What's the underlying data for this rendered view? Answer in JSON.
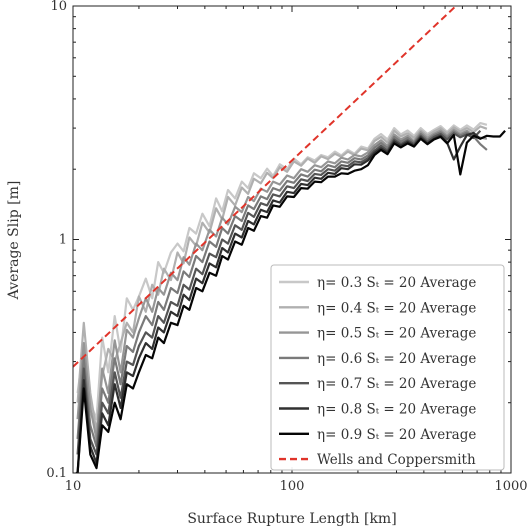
{
  "chart_data": {
    "type": "line",
    "title": "",
    "xlabel": "Surface Rupture Length [km]",
    "ylabel": "Average Slip [m]",
    "xscale": "log",
    "yscale": "log",
    "xlim": [
      10,
      1000
    ],
    "ylim": [
      0.1,
      10
    ],
    "xticks": [
      {
        "value": 10,
        "label": "10"
      },
      {
        "value": 100,
        "label": "100"
      },
      {
        "value": 1000,
        "label": "1000"
      }
    ],
    "yticks": [
      {
        "value": 0.1,
        "label": "0.1"
      },
      {
        "value": 1,
        "label": "1"
      },
      {
        "value": 10,
        "label": "10"
      }
    ],
    "grid": false,
    "legend_position": "bottom-right",
    "series": [
      {
        "name": "η= 0.3 Sₜ = 20 Average",
        "color": "#c8c8c8",
        "style": "solid",
        "x": [
          10.5,
          11.2,
          12,
          12.8,
          13.6,
          14.5,
          15.5,
          16.5,
          17.6,
          18.8,
          20,
          21.5,
          23,
          24.5,
          26,
          28,
          30,
          32,
          34,
          36.5,
          39,
          42,
          45,
          48,
          51,
          55,
          59,
          63,
          67,
          72,
          77,
          82,
          88,
          95,
          102,
          110,
          118,
          127,
          136,
          146,
          157,
          168,
          180,
          193,
          207,
          222,
          238,
          255,
          273,
          293,
          314,
          337,
          361,
          387,
          415,
          445,
          477,
          511,
          548,
          587,
          629,
          675,
          724,
          776
        ],
        "y": [
          0.22,
          0.35,
          0.2,
          0.17,
          0.38,
          0.27,
          0.47,
          0.33,
          0.56,
          0.5,
          0.57,
          0.68,
          0.56,
          0.8,
          0.72,
          0.88,
          0.96,
          0.89,
          1.12,
          1.06,
          1.29,
          1.14,
          1.5,
          1.32,
          1.63,
          1.5,
          1.77,
          1.66,
          1.92,
          1.83,
          2.01,
          1.87,
          2.1,
          2.0,
          2.22,
          2.1,
          2.25,
          2.18,
          2.3,
          2.25,
          2.38,
          2.29,
          2.42,
          2.33,
          2.5,
          2.45,
          2.7,
          2.83,
          2.68,
          3.0,
          2.82,
          2.93,
          2.78,
          3.0,
          2.83,
          2.95,
          3.06,
          2.89,
          3.08,
          2.95,
          3.08,
          2.96,
          3.15,
          3.1
        ]
      },
      {
        "name": "η= 0.4 Sₜ = 20 Average",
        "color": "#b0b0b0",
        "style": "solid",
        "x": [
          10.5,
          11.2,
          12,
          12.8,
          13.6,
          14.5,
          15.5,
          16.5,
          17.6,
          18.8,
          20,
          21.5,
          23,
          24.5,
          26,
          28,
          30,
          32,
          34,
          36.5,
          39,
          42,
          45,
          48,
          51,
          55,
          59,
          63,
          67,
          72,
          77,
          82,
          88,
          95,
          102,
          110,
          118,
          127,
          136,
          146,
          157,
          168,
          180,
          193,
          207,
          222,
          238,
          255,
          273,
          293,
          314,
          337,
          361,
          387,
          415,
          445,
          477,
          511,
          548,
          587,
          629,
          675,
          724,
          776
        ],
        "y": [
          0.2,
          0.44,
          0.22,
          0.15,
          0.26,
          0.34,
          0.3,
          0.36,
          0.44,
          0.4,
          0.57,
          0.49,
          0.64,
          0.58,
          0.75,
          0.67,
          0.88,
          0.79,
          1.02,
          0.94,
          1.18,
          1.07,
          1.36,
          1.22,
          1.52,
          1.4,
          1.67,
          1.57,
          1.82,
          1.74,
          1.93,
          1.83,
          2.04,
          1.95,
          2.16,
          2.07,
          2.22,
          2.13,
          2.27,
          2.21,
          2.33,
          2.26,
          2.38,
          2.3,
          2.45,
          2.41,
          2.64,
          2.75,
          2.6,
          2.92,
          2.76,
          2.85,
          2.72,
          2.93,
          2.78,
          2.9,
          3.0,
          2.85,
          3.02,
          2.9,
          3.0,
          2.88,
          3.05,
          2.98
        ]
      },
      {
        "name": "η= 0.5 Sₜ = 20 Average",
        "color": "#969696",
        "style": "solid",
        "x": [
          10.5,
          11.2,
          12,
          12.8,
          13.6,
          14.5,
          15.5,
          16.5,
          17.6,
          18.8,
          20,
          21.5,
          23,
          24.5,
          26,
          28,
          30,
          32,
          34,
          36.5,
          39,
          42,
          45,
          48,
          51,
          55,
          59,
          63,
          67,
          72,
          77,
          82,
          88,
          95,
          102,
          110,
          118,
          127,
          136,
          146,
          157,
          168,
          180,
          193,
          207,
          222,
          238,
          255,
          273,
          293,
          314,
          337,
          361,
          387,
          415,
          445,
          477,
          511,
          548,
          587,
          629,
          675,
          724,
          776
        ],
        "y": [
          0.17,
          0.36,
          0.19,
          0.14,
          0.28,
          0.22,
          0.37,
          0.27,
          0.41,
          0.38,
          0.46,
          0.56,
          0.49,
          0.62,
          0.58,
          0.72,
          0.67,
          0.84,
          0.78,
          0.96,
          0.9,
          1.1,
          1.03,
          1.24,
          1.16,
          1.38,
          1.31,
          1.52,
          1.46,
          1.65,
          1.6,
          1.77,
          1.72,
          1.88,
          1.83,
          2.0,
          1.95,
          2.08,
          2.04,
          2.16,
          2.12,
          2.24,
          2.2,
          2.3,
          2.27,
          2.36,
          2.54,
          2.66,
          2.52,
          2.82,
          2.68,
          2.78,
          2.64,
          2.88,
          2.72,
          2.84,
          2.93,
          2.78,
          2.95,
          2.83,
          2.92,
          2.79,
          2.73,
          2.7
        ]
      },
      {
        "name": "η= 0.6 Sₜ = 20 Average",
        "color": "#7a7a7a",
        "style": "solid",
        "x": [
          10.5,
          11.2,
          12,
          12.8,
          13.6,
          14.5,
          15.5,
          16.5,
          17.6,
          18.8,
          20,
          21.5,
          23,
          24.5,
          26,
          28,
          30,
          32,
          34,
          36.5,
          39,
          42,
          45,
          48,
          51,
          55,
          59,
          63,
          67,
          72,
          77,
          82,
          88,
          95,
          102,
          110,
          118,
          127,
          136,
          146,
          157,
          168,
          180,
          193,
          207,
          222,
          238,
          255,
          273,
          293,
          314,
          337,
          361,
          387,
          415,
          445,
          477,
          511,
          548,
          587,
          629,
          675,
          724,
          776
        ],
        "y": [
          0.14,
          0.31,
          0.16,
          0.13,
          0.23,
          0.2,
          0.31,
          0.24,
          0.35,
          0.33,
          0.4,
          0.47,
          0.43,
          0.54,
          0.5,
          0.62,
          0.59,
          0.73,
          0.69,
          0.85,
          0.8,
          0.98,
          0.93,
          1.12,
          1.06,
          1.26,
          1.2,
          1.4,
          1.35,
          1.53,
          1.49,
          1.66,
          1.62,
          1.78,
          1.75,
          1.9,
          1.86,
          1.99,
          1.96,
          2.08,
          2.04,
          2.16,
          2.13,
          2.23,
          2.2,
          2.29,
          2.47,
          2.59,
          2.46,
          2.75,
          2.62,
          2.72,
          2.6,
          2.83,
          2.67,
          2.8,
          2.88,
          2.74,
          2.9,
          2.79,
          2.87,
          2.76,
          2.56,
          2.42
        ]
      },
      {
        "name": "η= 0.7 Sₜ = 20 Average",
        "color": "#555555",
        "style": "solid",
        "x": [
          10.5,
          11.2,
          12,
          12.8,
          13.6,
          14.5,
          15.5,
          16.5,
          17.6,
          18.8,
          20,
          21.5,
          23,
          24.5,
          26,
          28,
          30,
          32,
          34,
          36.5,
          39,
          42,
          45,
          48,
          51,
          55,
          59,
          63,
          67,
          72,
          77,
          82,
          88,
          95,
          102,
          110,
          118,
          127,
          136,
          146,
          157,
          168,
          180,
          193,
          207,
          222,
          238,
          255,
          273,
          293,
          314,
          337,
          361,
          387,
          415,
          445,
          477,
          511,
          548,
          587,
          629,
          675,
          724
        ],
        "y": [
          0.12,
          0.28,
          0.14,
          0.12,
          0.2,
          0.18,
          0.27,
          0.21,
          0.3,
          0.29,
          0.35,
          0.4,
          0.38,
          0.47,
          0.44,
          0.54,
          0.52,
          0.64,
          0.61,
          0.75,
          0.71,
          0.87,
          0.84,
          1.0,
          0.96,
          1.15,
          1.1,
          1.3,
          1.25,
          1.43,
          1.4,
          1.56,
          1.53,
          1.69,
          1.66,
          1.81,
          1.78,
          1.91,
          1.89,
          2.0,
          1.97,
          2.08,
          2.06,
          2.16,
          2.14,
          2.23,
          2.4,
          2.52,
          2.4,
          2.68,
          2.56,
          2.66,
          2.56,
          2.78,
          2.62,
          2.75,
          2.83,
          2.68,
          2.85,
          2.74,
          2.82,
          2.72,
          2.92
        ]
      },
      {
        "name": "η= 0.8 Sₜ = 20 Average",
        "color": "#303030",
        "style": "solid",
        "x": [
          10.5,
          11.2,
          12,
          12.8,
          13.6,
          14.5,
          15.5,
          16.5,
          17.6,
          18.8,
          20,
          21.5,
          23,
          24.5,
          26,
          28,
          30,
          32,
          34,
          36.5,
          39,
          42,
          45,
          48,
          51,
          55,
          59,
          63,
          67,
          72,
          77,
          82,
          88,
          95,
          102,
          110,
          118,
          127,
          136,
          146,
          157,
          168,
          180,
          193,
          207,
          222,
          238,
          255,
          273,
          293,
          314,
          337,
          361,
          387,
          415,
          445,
          477,
          511,
          548,
          587,
          629,
          675,
          724
        ],
        "y": [
          0.1,
          0.25,
          0.13,
          0.11,
          0.18,
          0.16,
          0.24,
          0.19,
          0.27,
          0.26,
          0.31,
          0.36,
          0.34,
          0.42,
          0.4,
          0.49,
          0.47,
          0.58,
          0.55,
          0.68,
          0.65,
          0.79,
          0.76,
          0.92,
          0.88,
          1.06,
          1.02,
          1.2,
          1.16,
          1.34,
          1.31,
          1.47,
          1.44,
          1.6,
          1.58,
          1.73,
          1.71,
          1.84,
          1.82,
          1.93,
          1.91,
          2.02,
          2.0,
          2.1,
          2.09,
          2.18,
          2.35,
          2.46,
          2.36,
          2.63,
          2.52,
          2.62,
          2.52,
          2.74,
          2.58,
          2.7,
          2.78,
          2.6,
          2.2,
          2.5,
          2.8,
          2.86,
          2.7
        ]
      },
      {
        "name": "η= 0.9 Sₜ = 20 Average",
        "color": "#050505",
        "style": "solid",
        "x": [
          10.3,
          10.5,
          11.2,
          12,
          12.8,
          13.6,
          14.5,
          15.5,
          16.5,
          17.6,
          18.8,
          20,
          21.5,
          23,
          24.5,
          26,
          28,
          30,
          32,
          34,
          36.5,
          39,
          42,
          45,
          48,
          51,
          55,
          59,
          63,
          67,
          72,
          77,
          82,
          88,
          95,
          102,
          110,
          118,
          127,
          136,
          146,
          157,
          168,
          180,
          193,
          207,
          222,
          238,
          255,
          273,
          293,
          314,
          337,
          361,
          387,
          415,
          445,
          477,
          511,
          548,
          587,
          629,
          675,
          724,
          776,
          830,
          890,
          940
        ],
        "y": [
          0.1,
          0.1,
          0.23,
          0.12,
          0.105,
          0.16,
          0.15,
          0.2,
          0.17,
          0.24,
          0.23,
          0.27,
          0.32,
          0.31,
          0.38,
          0.36,
          0.44,
          0.43,
          0.52,
          0.5,
          0.62,
          0.6,
          0.72,
          0.7,
          0.85,
          0.82,
          0.98,
          0.95,
          1.12,
          1.09,
          1.26,
          1.24,
          1.4,
          1.38,
          1.53,
          1.52,
          1.66,
          1.65,
          1.77,
          1.76,
          1.86,
          1.86,
          1.92,
          1.91,
          1.97,
          2.0,
          2.08,
          2.3,
          2.42,
          2.32,
          2.58,
          2.48,
          2.58,
          2.5,
          2.7,
          2.56,
          2.68,
          2.75,
          2.58,
          2.8,
          1.9,
          2.6,
          2.78,
          2.7,
          2.78,
          2.76,
          2.76,
          2.92
        ]
      },
      {
        "name": "Wells and Coppersmith",
        "color": "#e0342a",
        "style": "dashed",
        "x": [
          10,
          560
        ],
        "y": [
          0.285,
          10
        ]
      }
    ]
  }
}
